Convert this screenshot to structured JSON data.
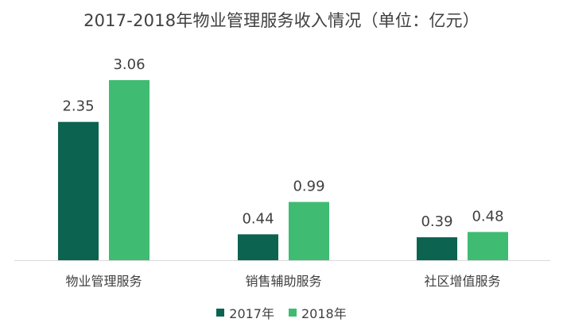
{
  "chart_data": {
    "type": "bar",
    "title": "2017-2018年物业管理服务收入情况（单位：亿元）",
    "categories": [
      "物业管理服务",
      "销售辅助服务",
      "社区增值服务"
    ],
    "series": [
      {
        "name": "2017年",
        "values": [
          2.35,
          0.44,
          0.39
        ],
        "color": "#0b6350"
      },
      {
        "name": "2018年",
        "values": [
          3.06,
          0.99,
          0.48
        ],
        "color": "#3fbb72"
      }
    ],
    "value_labels": [
      [
        "2.35",
        "0.44",
        "0.39"
      ],
      [
        "3.06",
        "0.99",
        "0.48"
      ]
    ],
    "xlabel": "",
    "ylabel": "",
    "ylim": [
      0,
      3.06
    ],
    "grid": false,
    "legend_position": "bottom"
  }
}
